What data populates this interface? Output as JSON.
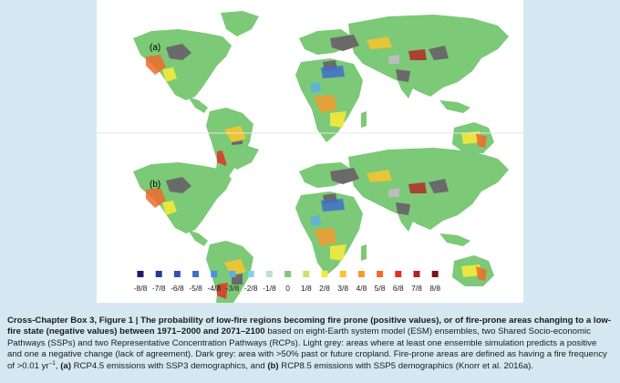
{
  "figure": {
    "panels": [
      {
        "label": "(a)"
      },
      {
        "label": "(b)"
      }
    ],
    "legend": {
      "items": [
        {
          "label": "-8/8",
          "color": "#1c1c6b"
        },
        {
          "label": "-7/8",
          "color": "#26379a"
        },
        {
          "label": "-6/8",
          "color": "#3352b4"
        },
        {
          "label": "-5/8",
          "color": "#3f6fc9"
        },
        {
          "label": "-4/8",
          "color": "#4d8fe0"
        },
        {
          "label": "-3/8",
          "color": "#5caee8"
        },
        {
          "label": "-2/8",
          "color": "#7fd0ec"
        },
        {
          "label": "-1/8",
          "color": "#b7e4d3"
        },
        {
          "label": "0",
          "color": "#7cc977"
        },
        {
          "label": "1/8",
          "color": "#c9e26a"
        },
        {
          "label": "2/8",
          "color": "#f3ea3a"
        },
        {
          "label": "3/8",
          "color": "#f8c42f"
        },
        {
          "label": "4/8",
          "color": "#f59b2e"
        },
        {
          "label": "5/8",
          "color": "#ee6a2b"
        },
        {
          "label": "6/8",
          "color": "#df3327"
        },
        {
          "label": "7/8",
          "color": "#b51f22"
        },
        {
          "label": "8/8",
          "color": "#7a1416"
        }
      ]
    },
    "colors": {
      "land": "#7cc977",
      "dark_grey": "#6a6a6a",
      "light_grey": "#bdbdbd"
    }
  },
  "caption": {
    "title": "Cross-Chapter Box 3, Figure 1 |  The probability of low-fire regions becoming fire prone (positive values), or of fire-prone areas changing to a low-fire state (negative values) between 1971–2000 and 2071–2100",
    "body": " based on eight-Earth system model (ESM) ensembles, two Shared Socio-economic Pathways (SSPs) and two Representative Concentration Pathways (RCPs). Light grey: areas where at least one ensemble simulation predicts a positive and one a negative change (lack of agreement). Dark grey: area with >50% past or future cropland. Fire-prone areas are defined as having a fire frequency of >0.01 yr",
    "sup": "–1",
    "comma": ",",
    "a_label": "(a)",
    "a_text": " RCP4.5 emissions with SSP3 demographics, and ",
    "b_label": "(b)",
    "b_text": " RCP8.5 emissions with SSP5 demographics (Knorr et al. 2016a)."
  }
}
